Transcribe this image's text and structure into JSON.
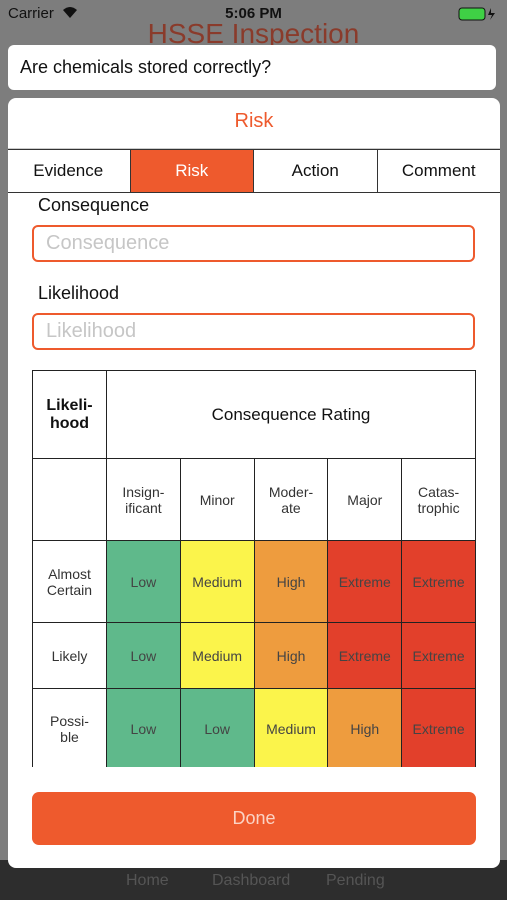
{
  "status_bar": {
    "carrier": "Carrier",
    "time": "5:06 PM"
  },
  "background": {
    "title": "HSSE Inspection",
    "tabs": [
      "Home",
      "Dashboard",
      "Pending"
    ]
  },
  "question": "Are chemicals stored correctly?",
  "modal": {
    "title": "Risk",
    "tabs": [
      "Evidence",
      "Risk",
      "Action",
      "Comment"
    ],
    "selected_tab": 1,
    "fields": [
      {
        "label": "Consequence",
        "placeholder": "Consequence"
      },
      {
        "label": "Likelihood",
        "placeholder": "Likelihood"
      }
    ],
    "matrix": {
      "corner": "Likeli-\nhood",
      "heading": "Consequence Rating",
      "columns": [
        "Insign-\nificant",
        "Minor",
        "Moder-\nate",
        "Major",
        "Catas-\ntrophic"
      ],
      "rows": [
        {
          "label": "Almost\nCertain",
          "cells": [
            "Low",
            "Medium",
            "High",
            "Extreme",
            "Extreme"
          ]
        },
        {
          "label": "Likely",
          "cells": [
            "Low",
            "Medium",
            "High",
            "Extreme",
            "Extreme"
          ]
        },
        {
          "label": "Possi-\nble",
          "cells": [
            "Low",
            "Low",
            "Medium",
            "High",
            "Extreme"
          ]
        }
      ],
      "colors": {
        "Low": "#5fb98b",
        "Medium": "#fbf44b",
        "High": "#ee9c3e",
        "Extreme": "#e2402b"
      }
    },
    "button": "Done"
  }
}
